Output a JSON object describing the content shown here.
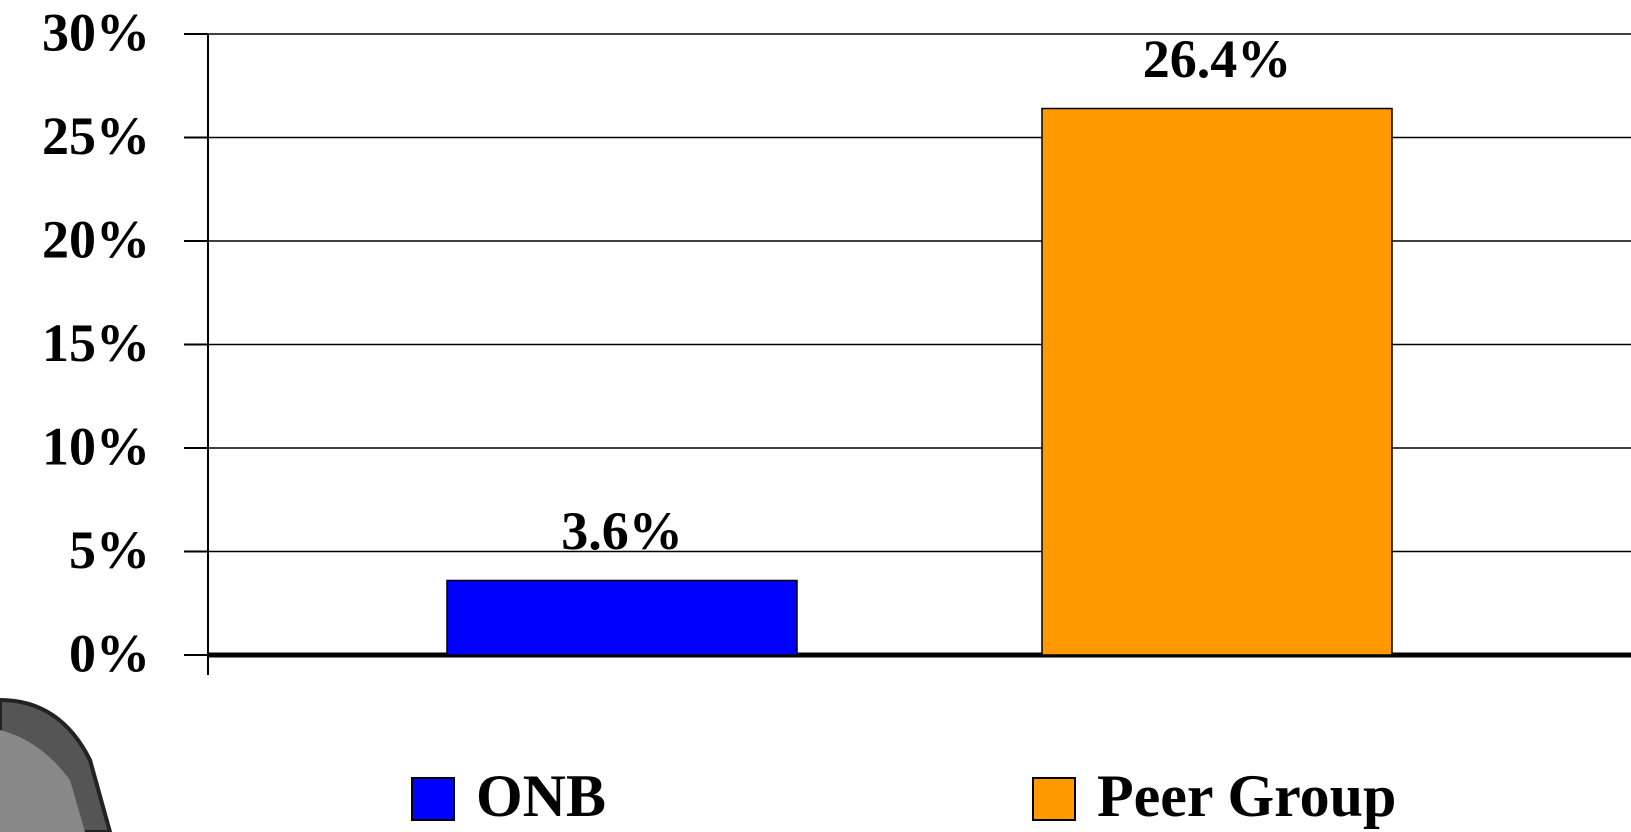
{
  "chart_data": {
    "type": "bar",
    "categories": [
      null
    ],
    "series": [
      {
        "name": "ONB",
        "color": "#0000ff",
        "values": [
          3.6
        ],
        "value_labels": [
          "3.6%"
        ]
      },
      {
        "name": "Peer Group",
        "color": "#ff9900",
        "values": [
          26.4
        ],
        "value_labels": [
          "26.4%"
        ]
      }
    ],
    "ylim": [
      0,
      30
    ],
    "yticks": [
      {
        "value": 0,
        "label": "0%"
      },
      {
        "value": 5,
        "label": "5%"
      },
      {
        "value": 10,
        "label": "10%"
      },
      {
        "value": 15,
        "label": "15%"
      },
      {
        "value": 20,
        "label": "20%"
      },
      {
        "value": 25,
        "label": "25%"
      },
      {
        "value": 30,
        "label": "30%"
      }
    ],
    "grid": true,
    "legend": "bottom"
  }
}
